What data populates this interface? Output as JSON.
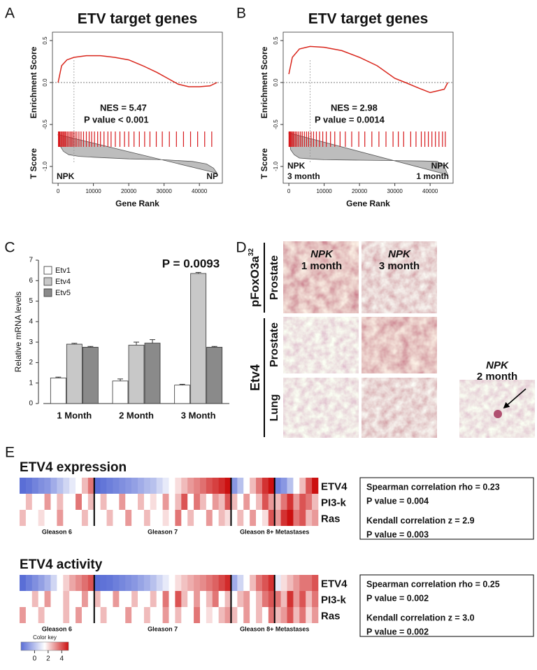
{
  "panel_labels": [
    "A",
    "B",
    "C",
    "D",
    "E"
  ],
  "chart_data": [
    {
      "type": "gsea",
      "title": "ETV target genes",
      "xlabel": "Gene Rank",
      "ylabel": "Enrichment Score",
      "ylabel2": "T Score",
      "x": [
        0,
        1000,
        2500,
        4500,
        8000,
        12000,
        16000,
        20000,
        24000,
        28000,
        31000,
        34000,
        37000,
        40000,
        43000,
        45000
      ],
      "values": [
        0,
        0.2,
        0.27,
        0.3,
        0.32,
        0.32,
        0.3,
        0.27,
        0.2,
        0.12,
        0.05,
        -0.02,
        -0.05,
        -0.05,
        -0.04,
        0
      ],
      "color": "#d9261c",
      "hits": [
        100,
        300,
        500,
        800,
        1100,
        1400,
        1700,
        2000,
        2300,
        2700,
        3100,
        3500,
        3900,
        4300,
        4800,
        5300,
        5900,
        6500,
        7200,
        8000,
        8800,
        9500,
        10300,
        11200,
        12000,
        13000,
        14100,
        15000,
        16200,
        17500,
        18800,
        20000,
        21500,
        23000,
        24500,
        26000,
        27800,
        29500,
        31500,
        33500,
        35500,
        37500,
        39500,
        41500,
        43500
      ],
      "hit_color": "#d7191c",
      "tscore_x": [
        0,
        500,
        1500,
        3000,
        6000,
        10000,
        20000,
        30000,
        38000,
        42000,
        44000,
        45000
      ],
      "tscore": [
        -0.62,
        -0.75,
        -0.82,
        -0.86,
        -0.88,
        -0.89,
        -0.91,
        -0.92,
        -0.94,
        -0.97,
        -1.02,
        -1.08
      ],
      "tscore_color": "#bdbdbd",
      "peak_rank": 4500,
      "xlim": [
        -1600,
        46500
      ],
      "xticks": [
        0,
        10000,
        20000,
        30000,
        40000
      ],
      "ylim": [
        -1.2,
        0.6
      ],
      "yticks": [
        0.5,
        {
          "value": 0,
          "label": "0.0"
        },
        -0.5,
        {
          "value": -1,
          "label": "-1.0"
        }
      ],
      "annotations": [
        "NES = 5.47",
        "P value < 0.001"
      ],
      "group_labels": [
        [
          "NPK"
        ],
        [
          "NP"
        ]
      ]
    },
    {
      "type": "gsea",
      "title": "ETV target genes",
      "xlabel": "Gene Rank",
      "ylabel": "Enrichment Score",
      "ylabel2": "T Score",
      "x": [
        0,
        1000,
        3000,
        6000,
        10000,
        15000,
        20000,
        25000,
        30000,
        33000,
        37000,
        40000,
        42000,
        44000,
        45000
      ],
      "values": [
        0.1,
        0.3,
        0.4,
        0.43,
        0.42,
        0.38,
        0.3,
        0.2,
        0.05,
        0,
        -0.07,
        -0.12,
        -0.1,
        -0.08,
        0
      ],
      "color": "#d9261c",
      "hits": [
        50,
        200,
        400,
        600,
        900,
        1200,
        1500,
        1900,
        2300,
        2800,
        3300,
        3800,
        4400,
        5000,
        5600,
        6300,
        7000,
        7800,
        8700,
        9600,
        10600,
        11800,
        13000,
        14500,
        16000,
        17800,
        19800,
        21500,
        23500,
        25500,
        27500,
        29500,
        31000,
        32500,
        34500,
        36000,
        37500,
        38500,
        39500,
        40500,
        41500,
        42500,
        43500,
        44300
      ],
      "hit_color": "#d7191c",
      "tscore_x": [
        0,
        500,
        1500,
        3000,
        6000,
        10000,
        20000,
        30000,
        38000,
        42000,
        44000,
        45000
      ],
      "tscore": [
        -0.6,
        -0.8,
        -0.86,
        -0.9,
        -0.91,
        -0.92,
        -0.925,
        -0.93,
        -0.935,
        -0.94,
        -1.0,
        -1.1
      ],
      "tscore_color": "#bdbdbd",
      "peak_rank": 6000,
      "xlim": [
        -1600,
        46500
      ],
      "xticks": [
        0,
        10000,
        20000,
        30000,
        40000
      ],
      "ylim": [
        -1.2,
        0.6
      ],
      "yticks": [
        0.5,
        {
          "value": 0,
          "label": "0.0"
        },
        -0.5,
        {
          "value": -1,
          "label": "-1.0"
        }
      ],
      "annotations": [
        "NES = 2.98",
        "P value = 0.0014"
      ],
      "group_labels": [
        [
          "NPK",
          "3 month"
        ],
        [
          "NPK",
          "1 month"
        ]
      ]
    },
    {
      "type": "bar",
      "ylabel": "Relative mRNA levels",
      "categories": [
        "1 Month",
        "2 Month",
        "3 Month"
      ],
      "series": [
        {
          "name": "Etv1",
          "color": "#ffffff",
          "values": [
            1.25,
            1.1,
            0.9
          ],
          "errors": [
            0.04,
            0.1,
            0.04
          ]
        },
        {
          "name": "Etv4",
          "color": "#c8c8c8",
          "values": [
            2.9,
            2.85,
            6.35
          ],
          "errors": [
            0.04,
            0.15,
            0.05
          ]
        },
        {
          "name": "Etv5",
          "color": "#8a8a8a",
          "values": [
            2.75,
            2.95,
            2.75
          ],
          "errors": [
            0.04,
            0.17,
            0.04
          ]
        }
      ],
      "ylim": [
        0,
        7
      ],
      "yticks": [
        0,
        1,
        2,
        3,
        4,
        5,
        6,
        7
      ],
      "annotation": "P = 0.0093"
    },
    {
      "type": "heatmap",
      "title": "ETV4 expression",
      "rows": [
        {
          "name": "ETV4",
          "values": [
            -2,
            -1.8,
            -1.5,
            -1.2,
            -1,
            -0.5,
            0,
            0.5,
            1,
            1.5,
            2.5,
            3.5,
            -2,
            -1.8,
            -1.6,
            -1.4,
            -1.2,
            -1,
            -0.8,
            -0.5,
            -0.2,
            0,
            0.5,
            1,
            1.5,
            2,
            2.5,
            3,
            3.3,
            3.6,
            4,
            4.3,
            4.6,
            5,
            -1,
            0,
            1.5,
            2.5,
            3.5,
            4.5,
            5,
            -1.5,
            -1,
            0,
            1.5,
            2.5,
            4,
            5
          ]
        },
        {
          "name": "PI3-k",
          "values": [
            1.5,
            2.5,
            1.5,
            1.5,
            3,
            1.5,
            2.5,
            1.5,
            1.5,
            3.5,
            1.5,
            2.5,
            1.5,
            2.5,
            1.5,
            1.5,
            3,
            1.5,
            1.5,
            2.5,
            1.5,
            2,
            1.5,
            3,
            1.5,
            2.5,
            4,
            1.5,
            3.5,
            2.5,
            1.5,
            3,
            2.5,
            4,
            2.5,
            1.5,
            3,
            1.5,
            2.5,
            4,
            3,
            2.5,
            3.5,
            4.5,
            3,
            4,
            3.5,
            2.5
          ]
        },
        {
          "name": "Ras",
          "values": [
            2.5,
            1.5,
            1.5,
            2,
            1.5,
            1.5,
            3,
            1.5,
            1.5,
            1.5,
            2.5,
            1.5,
            1.5,
            1.5,
            2.5,
            1.5,
            1.5,
            3,
            1.5,
            1.5,
            2.5,
            1.5,
            1.5,
            2,
            1.5,
            3.5,
            1.5,
            2.5,
            1.5,
            1.5,
            3,
            1.5,
            2.5,
            2,
            1.5,
            2.5,
            1.5,
            3,
            1.5,
            2,
            4,
            3,
            4.5,
            5,
            3.5,
            4,
            2.5,
            3
          ]
        }
      ],
      "groups": [
        "Gleason 6",
        "Gleason 7",
        "Gleason 8+ Metastases"
      ],
      "dividers": [
        12,
        34,
        41
      ],
      "stats": [
        "Spearman correlation rho = 0.23",
        "P value = 0.004",
        "Kendall correlation z = 2.9",
        "P value = 0.003"
      ]
    },
    {
      "type": "heatmap",
      "title": "ETV4 activity",
      "rows": [
        {
          "name": "ETV4",
          "values": [
            -2,
            -1.6,
            -1.2,
            -0.8,
            -0.3,
            0.5,
            1.5,
            2.2,
            2.8,
            3.2,
            3.6,
            4,
            -2,
            -1.9,
            -1.8,
            -1.6,
            -1.4,
            -1.2,
            -1,
            -0.7,
            -0.4,
            0,
            0.5,
            1,
            1.5,
            2,
            2.4,
            2.7,
            3,
            3.2,
            3.5,
            3.8,
            4.2,
            4.6,
            -0.5,
            0.5,
            1.5,
            2.5,
            3.5,
            4,
            4.5,
            1,
            2,
            2.5,
            3,
            3.5,
            3.5,
            4
          ]
        },
        {
          "name": "PI3-k",
          "values": [
            1.5,
            1.5,
            2.5,
            1.5,
            3,
            1.5,
            1.5,
            2.5,
            1.5,
            1.5,
            3,
            1.5,
            2.5,
            1.5,
            1.5,
            3,
            1.5,
            1.5,
            2.5,
            1.5,
            1.5,
            2.5,
            1.5,
            3.5,
            1.5,
            4,
            2.5,
            1.5,
            3,
            1.5,
            2.5,
            3.5,
            1.5,
            2.5,
            1.5,
            2.5,
            3,
            1.5,
            2.5,
            3.5,
            4,
            3.5,
            2.5,
            4.5,
            3,
            4,
            2.5,
            3.5
          ]
        },
        {
          "name": "Ras",
          "values": [
            3,
            1.5,
            1.5,
            2.5,
            1.5,
            1.5,
            1.5,
            2.5,
            1.5,
            3,
            1.5,
            1.5,
            1.5,
            2.5,
            1.5,
            1.5,
            1.5,
            3,
            1.5,
            1.5,
            2.5,
            1.5,
            1.5,
            3,
            1.5,
            2.5,
            1.5,
            1.5,
            3.5,
            1.5,
            2,
            1.5,
            2.5,
            3,
            2.5,
            1.5,
            3,
            1.5,
            2.5,
            1.5,
            3.5,
            2.5,
            3,
            4,
            2.5,
            3.5,
            2,
            3
          ]
        }
      ],
      "groups": [
        "Gleason 6",
        "Gleason 7",
        "Gleason 8+ Metastases"
      ],
      "dividers": [
        12,
        34,
        41
      ],
      "stats": [
        "Spearman correlation rho = 0.25",
        "P value = 0.002",
        "Kendall correlation z = 3.0",
        "P value = 0.002"
      ]
    }
  ],
  "color_key": {
    "title": "Color key",
    "zlim": [
      -2,
      5
    ],
    "ticks": [
      0,
      2,
      4
    ],
    "colors": [
      "#5a6ed6",
      "#ffffff",
      "#cc1010"
    ]
  },
  "histology": {
    "columns": [
      {
        "title": "NPK",
        "subtitle": "1 month"
      },
      {
        "title": "NPK",
        "subtitle": "3 month"
      },
      {
        "title": "NPK",
        "subtitle": "2 month"
      }
    ],
    "markers": [
      {
        "label": "pFoxO3a",
        "superscript": "32"
      },
      {
        "label": "Etv4"
      }
    ],
    "tissues": [
      "Prostate",
      "Prostate",
      "Lung"
    ]
  }
}
